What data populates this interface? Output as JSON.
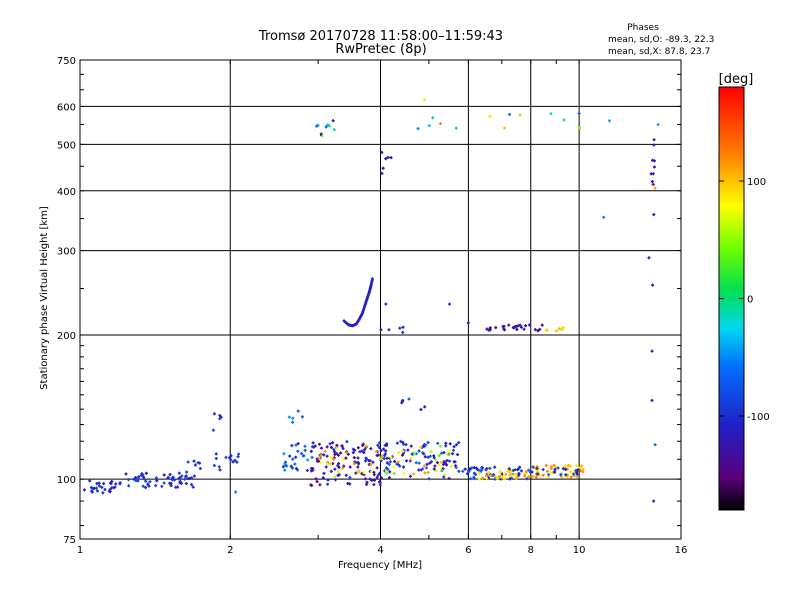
{
  "chart_data": {
    "type": "scatter",
    "title": "Tromsø 20170728 11:58:00–11:59:43",
    "subtitle": "RwPretec (8p)",
    "xlabel": "Frequency [MHz]",
    "ylabel": "Stationary phase Virtual Height [km]",
    "x_scale": "log",
    "y_scale": "log",
    "xlim": [
      1,
      16
    ],
    "ylim": [
      75,
      750
    ],
    "x_ticks": [
      1,
      2,
      4,
      6,
      8,
      10,
      16
    ],
    "y_ticks": [
      75,
      100,
      200,
      300,
      400,
      500,
      600,
      750
    ],
    "grid": true,
    "phases": {
      "title": "Phases",
      "line_o": "mean, sd,O: -89.3, 22.3",
      "line_x": "mean, sd,X:  87.8, 23.7"
    },
    "colorbar": {
      "label": "[deg]",
      "range": [
        -180,
        180
      ],
      "ticks": [
        100,
        0,
        -100
      ],
      "tick_labels": [
        "100",
        "0",
        "-100"
      ],
      "colormap": "rainbow"
    },
    "clusters": [
      {
        "f": [
          1.02,
          1.18
        ],
        "h": [
          93,
          100
        ],
        "ph": [
          -120,
          -90
        ],
        "n": 26
      },
      {
        "f": [
          1.2,
          1.7
        ],
        "h": [
          96,
          103
        ],
        "ph": [
          -125,
          -80
        ],
        "n": 55
      },
      {
        "f": [
          1.6,
          1.75
        ],
        "h": [
          100,
          110
        ],
        "ph": [
          -110,
          -80
        ],
        "n": 10
      },
      {
        "f": [
          1.85,
          2.08
        ],
        "h": [
          104,
          115
        ],
        "ph": [
          -120,
          -70
        ],
        "n": 14
      },
      {
        "f": [
          1.85,
          1.92
        ],
        "h": [
          125,
          140
        ],
        "ph": [
          -120,
          -90
        ],
        "n": 5
      },
      {
        "f": [
          2.55,
          2.95
        ],
        "h": [
          104,
          120
        ],
        "ph": [
          -110,
          -40
        ],
        "n": 30
      },
      {
        "f": [
          2.55,
          2.8
        ],
        "h": [
          130,
          140
        ],
        "ph": [
          -90,
          -40
        ],
        "n": 5
      },
      {
        "f": [
          2.9,
          4.1
        ],
        "h": [
          97,
          120
        ],
        "ph": [
          -150,
          -90
        ],
        "n": 120
      },
      {
        "f": [
          3.0,
          4.0
        ],
        "h": [
          100,
          118
        ],
        "ph": [
          60,
          120
        ],
        "n": 22
      },
      {
        "f": [
          4.0,
          5.8
        ],
        "h": [
          100,
          120
        ],
        "ph": [
          -140,
          -60
        ],
        "n": 95
      },
      {
        "f": [
          4.0,
          5.6
        ],
        "h": [
          102,
          118
        ],
        "ph": [
          30,
          120
        ],
        "n": 30
      },
      {
        "f": [
          4.4,
          5.2
        ],
        "h": [
          138,
          148
        ],
        "ph": [
          -120,
          -60
        ],
        "n": 7
      },
      {
        "f": [
          5.8,
          8.0
        ],
        "h": [
          100,
          106
        ],
        "ph": [
          -130,
          -60
        ],
        "n": 60
      },
      {
        "f": [
          6.3,
          8.2
        ],
        "h": [
          100,
          104
        ],
        "ph": [
          70,
          120
        ],
        "n": 35
      },
      {
        "f": [
          8.0,
          10.2
        ],
        "h": [
          101,
          107
        ],
        "ph": [
          80,
          130
        ],
        "n": 50
      },
      {
        "f": [
          8.0,
          10.0
        ],
        "h": [
          102,
          106
        ],
        "ph": [
          -120,
          -70
        ],
        "n": 20
      },
      {
        "f": [
          6.5,
          8.6
        ],
        "h": [
          204,
          210
        ],
        "ph": [
          -160,
          -100
        ],
        "n": 26
      },
      {
        "f": [
          8.5,
          9.4
        ],
        "h": [
          203,
          208
        ],
        "ph": [
          80,
          110
        ],
        "n": 9
      },
      {
        "f": [
          4.0,
          4.5
        ],
        "h": [
          202,
          208
        ],
        "ph": [
          -130,
          -100
        ],
        "n": 5
      },
      {
        "f": [
          2.8,
          3.3
        ],
        "h": [
          520,
          575
        ],
        "ph": [
          -140,
          140
        ],
        "n": 10
      },
      {
        "f": [
          4.6,
          10.2
        ],
        "h": [
          530,
          580
        ],
        "ph": [
          -60,
          120
        ],
        "n": 12
      },
      {
        "f": [
          4.0,
          4.3
        ],
        "h": [
          430,
          490
        ],
        "ph": [
          -130,
          -110
        ],
        "n": 6
      },
      {
        "f": [
          13.8,
          14.2
        ],
        "h": [
          250,
          550
        ],
        "ph": [
          -130,
          -110
        ],
        "n": 12
      }
    ],
    "trace": {
      "f": [
        3.38,
        3.45,
        3.52,
        3.58,
        3.63,
        3.68,
        3.72,
        3.76,
        3.8,
        3.83,
        3.86
      ],
      "h": [
        214,
        210,
        209,
        211,
        216,
        222,
        230,
        238,
        246,
        254,
        264
      ],
      "ph": -110
    },
    "extra_points": [
      [
        14.1,
        90,
        -110
      ],
      [
        14.0,
        185,
        -120
      ],
      [
        14.0,
        146,
        -115
      ],
      [
        14.2,
        118,
        -60
      ],
      [
        14.2,
        405,
        110
      ],
      [
        11.2,
        352,
        -50
      ],
      [
        4.1,
        232,
        -100
      ],
      [
        5.5,
        232,
        -90
      ],
      [
        4.9,
        620,
        70
      ],
      [
        2.05,
        94,
        -50
      ],
      [
        6.0,
        212,
        -110
      ],
      [
        10.0,
        580,
        -80
      ],
      [
        11.5,
        560,
        -40
      ],
      [
        14.4,
        550,
        -40
      ]
    ]
  }
}
